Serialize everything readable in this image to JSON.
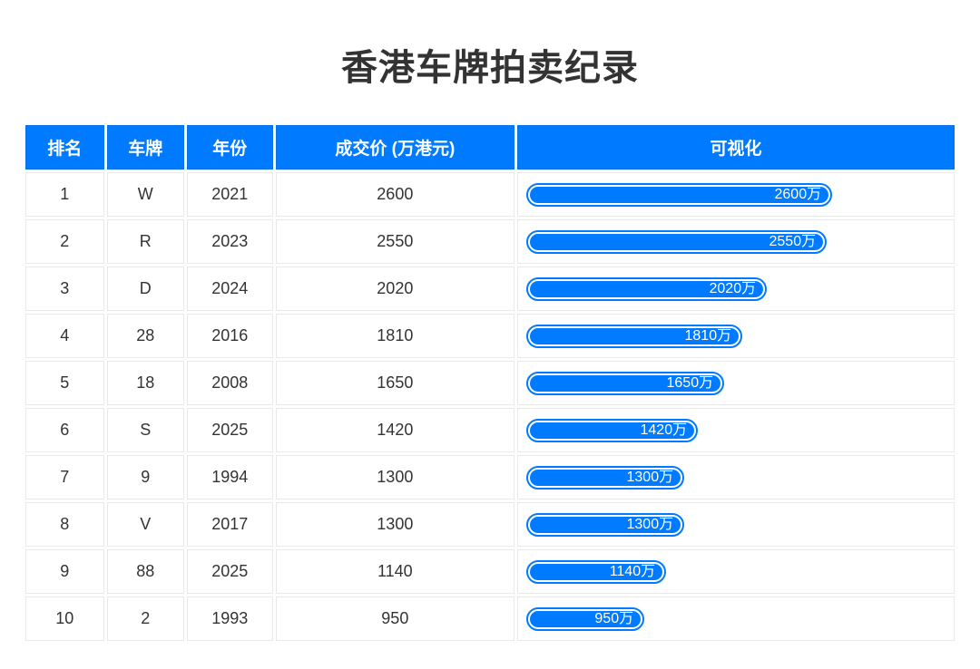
{
  "page": {
    "title": "香港车牌拍卖纪录"
  },
  "colors": {
    "accent_blue": "#007bff",
    "header_text": "#ffffff",
    "body_text": "#333333",
    "cell_border": "#e9e9e9",
    "background": "#ffffff"
  },
  "table": {
    "headers": [
      "排名",
      "车牌",
      "年份",
      "成交价 (万港元)",
      "可视化"
    ],
    "rows": [
      {
        "rank": "1",
        "plate": "W",
        "year": "2021",
        "price": "2600",
        "bar_value": 2600,
        "bar_label": "2600万"
      },
      {
        "rank": "2",
        "plate": "R",
        "year": "2023",
        "price": "2550",
        "bar_value": 2550,
        "bar_label": "2550万"
      },
      {
        "rank": "3",
        "plate": "D",
        "year": "2024",
        "price": "2020",
        "bar_value": 2020,
        "bar_label": "2020万"
      },
      {
        "rank": "4",
        "plate": "28",
        "year": "2016",
        "price": "1810",
        "bar_value": 1810,
        "bar_label": "1810万"
      },
      {
        "rank": "5",
        "plate": "18",
        "year": "2008",
        "price": "1650",
        "bar_value": 1650,
        "bar_label": "1650万"
      },
      {
        "rank": "6",
        "plate": "S",
        "year": "2025",
        "price": "1420",
        "bar_value": 1420,
        "bar_label": "1420万"
      },
      {
        "rank": "7",
        "plate": "9",
        "year": "1994",
        "price": "1300",
        "bar_value": 1300,
        "bar_label": "1300万"
      },
      {
        "rank": "8",
        "plate": "V",
        "year": "2017",
        "price": "1300",
        "bar_value": 1300,
        "bar_label": "1300万"
      },
      {
        "rank": "9",
        "plate": "88",
        "year": "2025",
        "price": "1140",
        "bar_value": 1140,
        "bar_label": "1140万"
      },
      {
        "rank": "10",
        "plate": "2",
        "year": "1993",
        "price": "950",
        "bar_value": 950,
        "bar_label": "950万"
      }
    ]
  },
  "chart_data": {
    "type": "table",
    "title": "香港车牌拍卖纪录",
    "columns": [
      "排名",
      "车牌",
      "年份",
      "成交价 (万港元)",
      "可视化"
    ],
    "ranks": [
      1,
      2,
      3,
      4,
      5,
      6,
      7,
      8,
      9,
      10
    ],
    "categories": [
      "W",
      "R",
      "D",
      "28",
      "18",
      "S",
      "9",
      "V",
      "88",
      "2"
    ],
    "years": [
      2021,
      2023,
      2024,
      2016,
      2008,
      2025,
      1994,
      2017,
      2025,
      1993
    ],
    "series": [
      {
        "name": "成交价 (万港元)",
        "values": [
          2600,
          2550,
          2020,
          1810,
          1650,
          1420,
          1300,
          1300,
          1140,
          950
        ]
      }
    ],
    "bar_labels": [
      "2600万",
      "2550万",
      "2020万",
      "1810万",
      "1650万",
      "1420万",
      "1300万",
      "1300万",
      "1140万",
      "950万"
    ],
    "bar_column": "可视化",
    "bar_color": "#007bff",
    "value_range": [
      0,
      2600
    ],
    "grid": false,
    "legend": false
  }
}
